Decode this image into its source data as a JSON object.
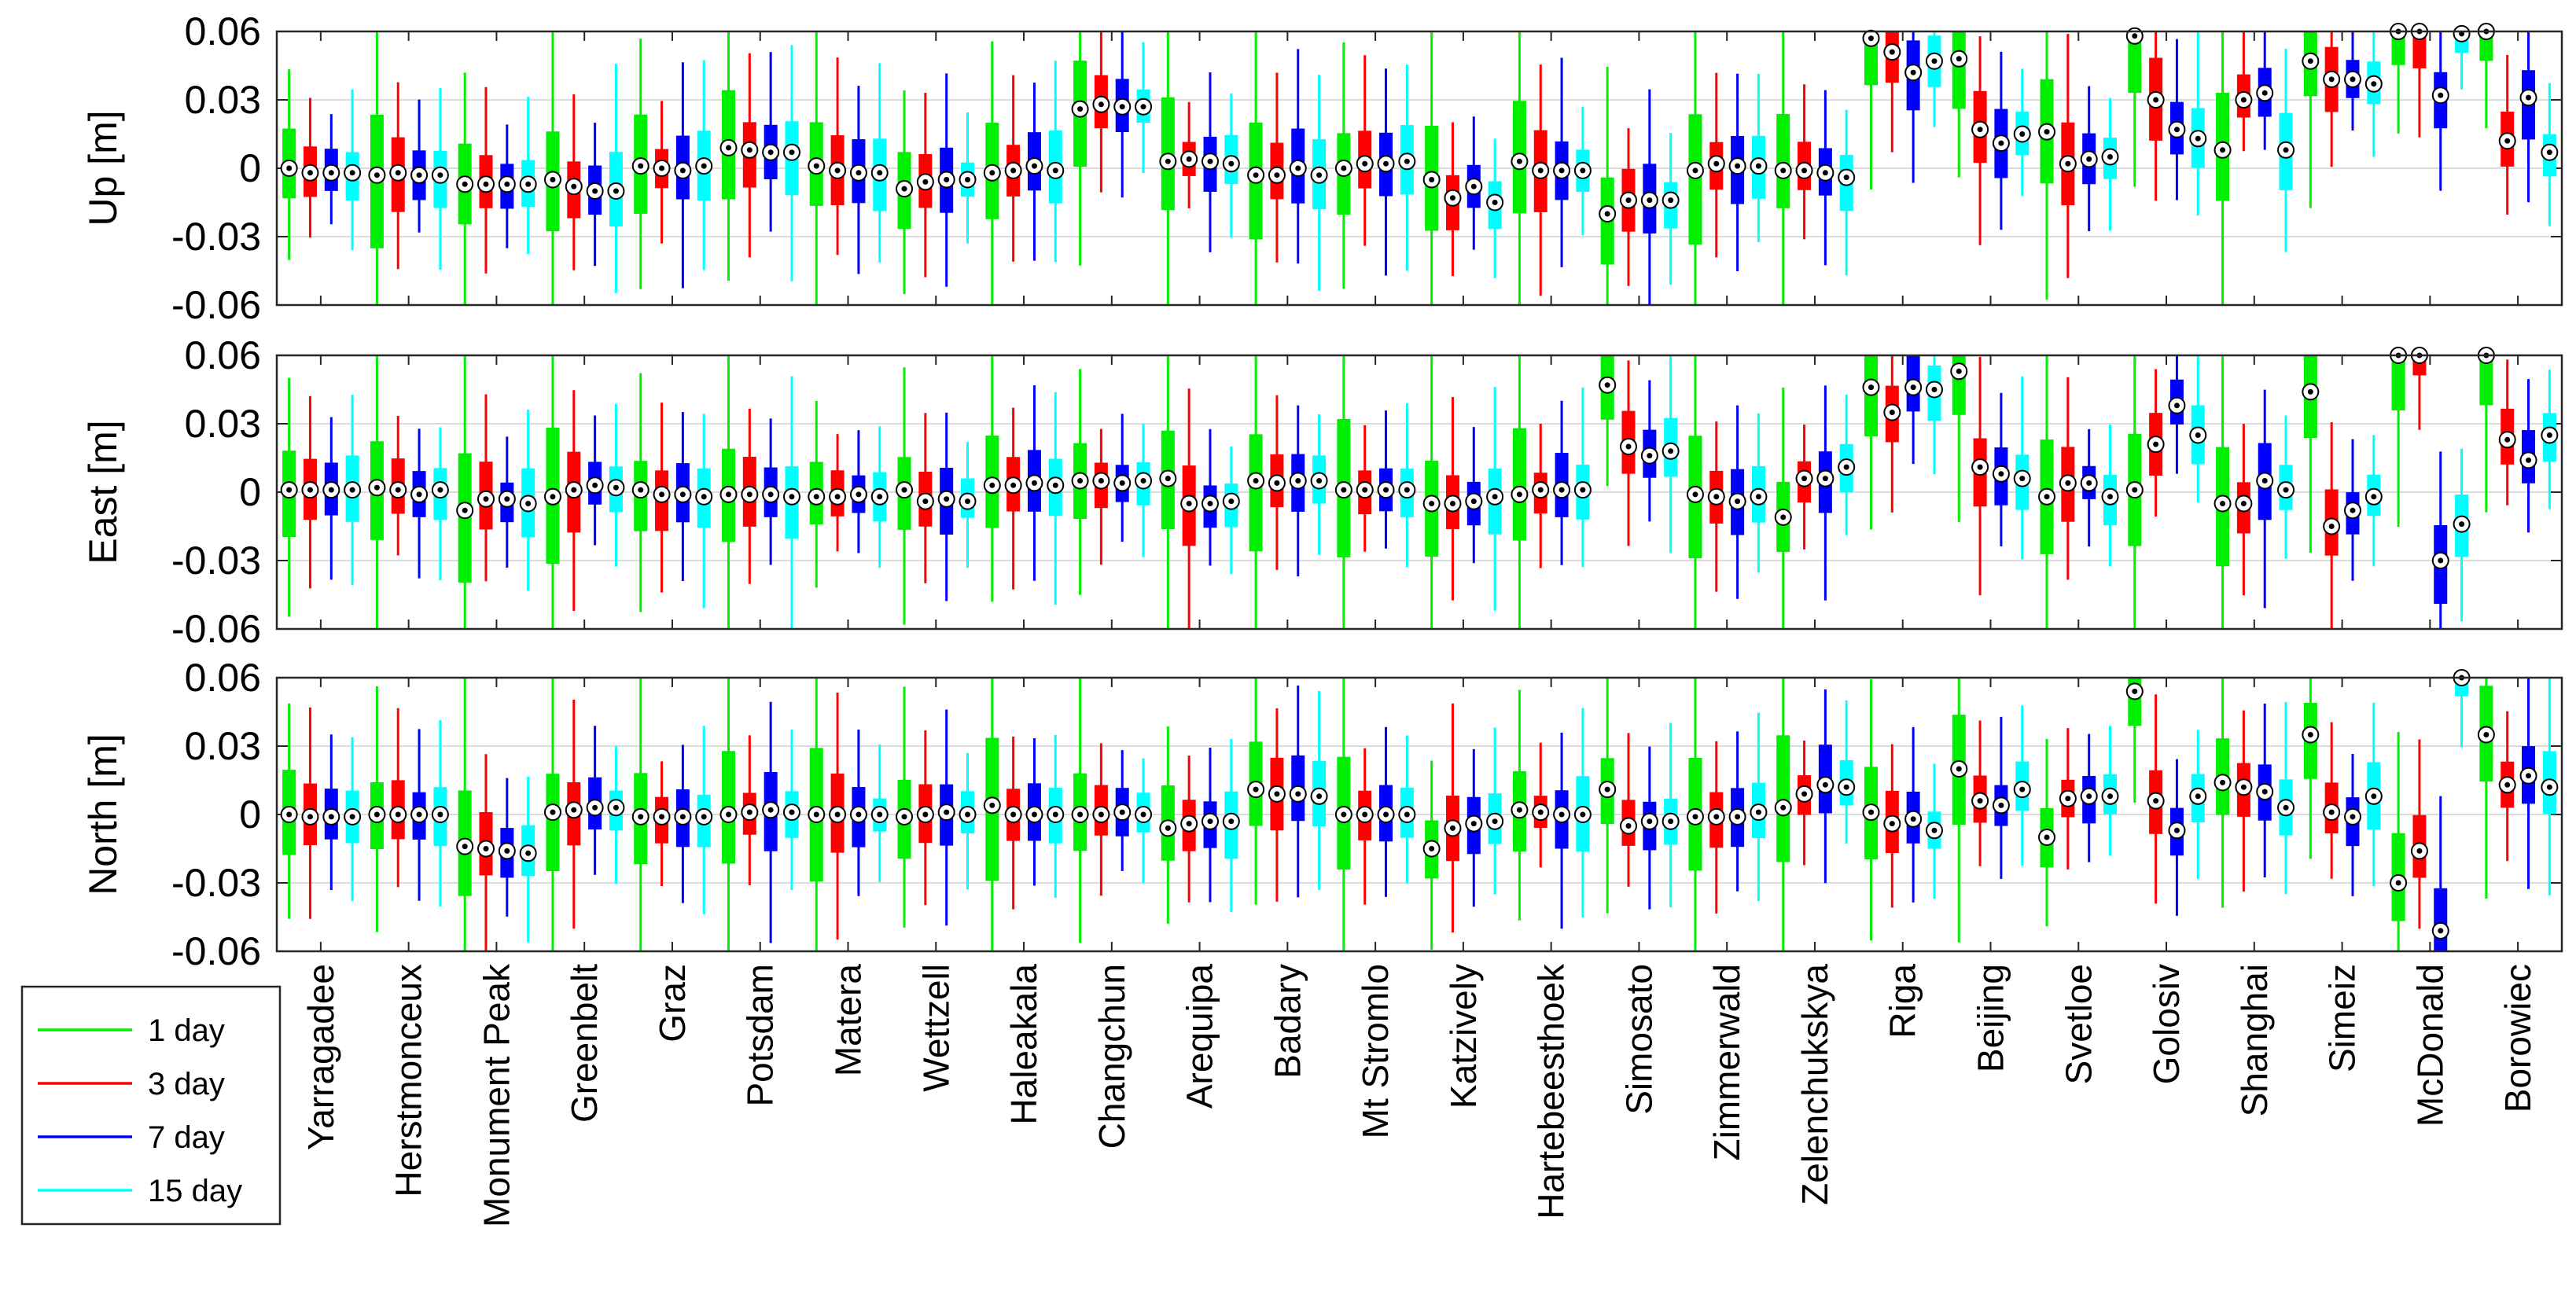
{
  "chart_data": {
    "type": "boxplot",
    "title": "",
    "ylim": [
      -0.06,
      0.06
    ],
    "yticks": [
      "0.06",
      "0.03",
      "0",
      "-0.03",
      "-0.06"
    ],
    "ytick_values": [
      0.06,
      0.03,
      0,
      -0.03,
      -0.06
    ],
    "grid": true,
    "legend_position": "bottom-left, outside plot",
    "series": [
      {
        "name": "1 day",
        "color": "#00ee00"
      },
      {
        "name": "3 day",
        "color": "#ff0000"
      },
      {
        "name": "7 day",
        "color": "#0000ff"
      },
      {
        "name": "15 day",
        "color": "#00ffff"
      }
    ],
    "stations": [
      "Yarragadee",
      "Herstmonceux",
      "Monument Peak",
      "Greenbelt",
      "Graz",
      "Potsdam",
      "Matera",
      "Wettzell",
      "Haleakala",
      "Changchun",
      "Arequipa",
      "Badary",
      "Mt Stromlo",
      "Katzively",
      "Hartebeesthoek",
      "Simosato",
      "Zimmerwald",
      "Zelenchukskya",
      "Riga",
      "Beijing",
      "Svetloe",
      "Golosiv",
      "Shanghai",
      "Simeiz",
      "McDonald",
      "Borowiec"
    ],
    "panels": [
      {
        "ylabel": "Up [m]",
        "medians": [
          [
            0,
            -0.002,
            -0.002,
            -0.002
          ],
          [
            -0.003,
            -0.002,
            -0.003,
            -0.003
          ],
          [
            -0.007,
            -0.007,
            -0.007,
            -0.007
          ],
          [
            -0.005,
            -0.008,
            -0.01,
            -0.01
          ],
          [
            0.001,
            0,
            -0.001,
            0.001
          ],
          [
            0.009,
            0.008,
            0.007,
            0.007
          ],
          [
            0.001,
            -0.001,
            -0.002,
            -0.002
          ],
          [
            -0.009,
            -0.006,
            -0.005,
            -0.005
          ],
          [
            -0.002,
            -0.001,
            0.001,
            -0.001
          ],
          [
            0.026,
            0.028,
            0.027,
            0.027
          ],
          [
            0.003,
            0.004,
            0.003,
            0.002
          ],
          [
            -0.003,
            -0.003,
            0,
            -0.003
          ],
          [
            0,
            0.002,
            0.002,
            0.003
          ],
          [
            -0.005,
            -0.013,
            -0.008,
            -0.015
          ],
          [
            0.003,
            -0.001,
            -0.001,
            -0.001
          ],
          [
            -0.02,
            -0.014,
            -0.014,
            -0.014
          ],
          [
            -0.001,
            0.002,
            0.001,
            0.001
          ],
          [
            -0.001,
            -0.001,
            -0.002,
            -0.004
          ],
          [
            0.057,
            0.051,
            0.042,
            0.047
          ],
          [
            0.048,
            0.017,
            0.011,
            0.015
          ],
          [
            0.016,
            0.002,
            0.004,
            0.005
          ],
          [
            0.058,
            0.03,
            0.017,
            0.013
          ],
          [
            0.008,
            0.03,
            0.033,
            0.008
          ],
          [
            0.047,
            0.039,
            0.039,
            0.037
          ],
          [
            0.062,
            0.062,
            0.032,
            0.059
          ],
          [
            0.062,
            0.012,
            0.031,
            0.007
          ]
        ]
      },
      {
        "ylabel": "East [m]",
        "medians": [
          [
            0.001,
            0.001,
            0.001,
            0.001
          ],
          [
            0.002,
            0.001,
            -0.001,
            0.001
          ],
          [
            -0.008,
            -0.003,
            -0.003,
            -0.005
          ],
          [
            -0.002,
            0.001,
            0.003,
            0.002
          ],
          [
            0.001,
            -0.001,
            -0.001,
            -0.002
          ],
          [
            -0.001,
            -0.001,
            -0.001,
            -0.002
          ],
          [
            -0.002,
            -0.002,
            -0.001,
            -0.002
          ],
          [
            0.001,
            -0.004,
            -0.003,
            -0.004
          ],
          [
            0.003,
            0.003,
            0.004,
            0.003
          ],
          [
            0.005,
            0.005,
            0.004,
            0.005
          ],
          [
            0.006,
            -0.005,
            -0.005,
            -0.004
          ],
          [
            0.005,
            0.004,
            0.005,
            0.005
          ],
          [
            0.001,
            0.001,
            0.001,
            0.001
          ],
          [
            -0.005,
            -0.005,
            -0.004,
            -0.002
          ],
          [
            -0.001,
            0.001,
            0.001,
            0.001
          ],
          [
            0.047,
            0.02,
            0.016,
            0.018
          ],
          [
            -0.001,
            -0.002,
            -0.004,
            -0.002
          ],
          [
            -0.011,
            0.006,
            0.006,
            0.011
          ],
          [
            0.046,
            0.035,
            0.046,
            0.045
          ],
          [
            0.053,
            0.011,
            0.008,
            0.006
          ],
          [
            -0.002,
            0.004,
            0.004,
            -0.002
          ],
          [
            0.001,
            0.021,
            0.038,
            0.025
          ],
          [
            -0.005,
            -0.005,
            0.005,
            0.001
          ],
          [
            0.044,
            -0.015,
            -0.008,
            -0.002
          ],
          [
            0.062,
            0.062,
            -0.03,
            -0.014
          ],
          [
            0.062,
            0.023,
            0.014,
            0.025
          ]
        ]
      },
      {
        "ylabel": "North [m]",
        "medians": [
          [
            0,
            -0.001,
            -0.001,
            -0.001
          ],
          [
            0,
            0,
            0,
            0
          ],
          [
            -0.014,
            -0.015,
            -0.016,
            -0.017
          ],
          [
            0.001,
            0.002,
            0.003,
            0.003
          ],
          [
            -0.001,
            -0.001,
            -0.001,
            -0.001
          ],
          [
            0,
            0.001,
            0.002,
            0.001
          ],
          [
            0,
            0,
            0,
            0
          ],
          [
            -0.001,
            0,
            0.001,
            0
          ],
          [
            0.004,
            0,
            0,
            0
          ],
          [
            0,
            0,
            0.001,
            0
          ],
          [
            -0.006,
            -0.004,
            -0.003,
            -0.003
          ],
          [
            0.011,
            0.009,
            0.009,
            0.008
          ],
          [
            0,
            0,
            0,
            0
          ],
          [
            -0.015,
            -0.006,
            -0.004,
            -0.003
          ],
          [
            0.002,
            0.001,
            0,
            0
          ],
          [
            0.011,
            -0.005,
            -0.003,
            -0.003
          ],
          [
            -0.001,
            -0.001,
            -0.001,
            0.001
          ],
          [
            0.003,
            0.009,
            0.013,
            0.012
          ],
          [
            0.001,
            -0.004,
            -0.002,
            -0.007
          ],
          [
            0.02,
            0.006,
            0.004,
            0.011
          ],
          [
            -0.01,
            0.007,
            0.008,
            0.008
          ],
          [
            0.054,
            0.006,
            -0.007,
            0.008
          ],
          [
            0.014,
            0.012,
            0.01,
            0.003
          ],
          [
            0.035,
            0.001,
            -0.001,
            0.008
          ],
          [
            -0.03,
            -0.016,
            -0.051,
            0.062
          ],
          [
            0.035,
            0.013,
            0.017,
            0.012
          ]
        ]
      }
    ]
  }
}
